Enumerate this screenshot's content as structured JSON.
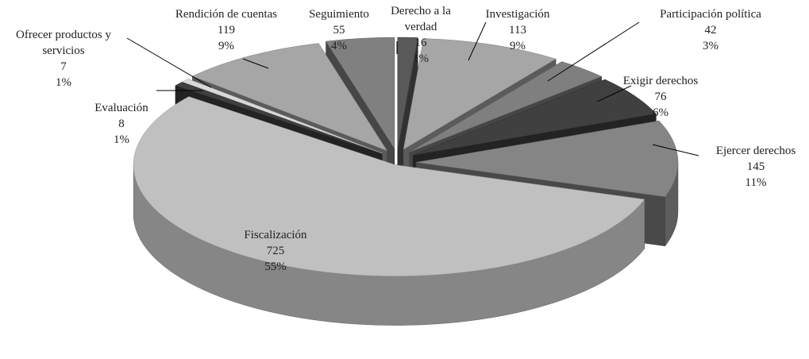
{
  "chart_data": {
    "type": "pie",
    "categories": [
      "Derecho a la verdad",
      "Investigación",
      "Participación política",
      "Exigir derechos",
      "Ejercer derechos",
      "Fiscalización",
      "Evaluación",
      "Ofrecer productos y servicios",
      "Rendición de cuentas",
      "Seguimiento"
    ],
    "values": [
      16,
      113,
      42,
      76,
      145,
      725,
      8,
      7,
      119,
      55
    ],
    "value_labels": [
      "1%",
      "9%",
      "3%",
      "6%",
      "11%",
      "55%",
      "1%",
      "1%",
      "9%",
      "4%"
    ],
    "colors": [
      "#595959",
      "#a6a6a6",
      "#7f7f7f",
      "#404040",
      "#858585",
      "#c0c0c0",
      "#404040",
      "#d9d9d9",
      "#a6a6a6",
      "#808080"
    ]
  }
}
